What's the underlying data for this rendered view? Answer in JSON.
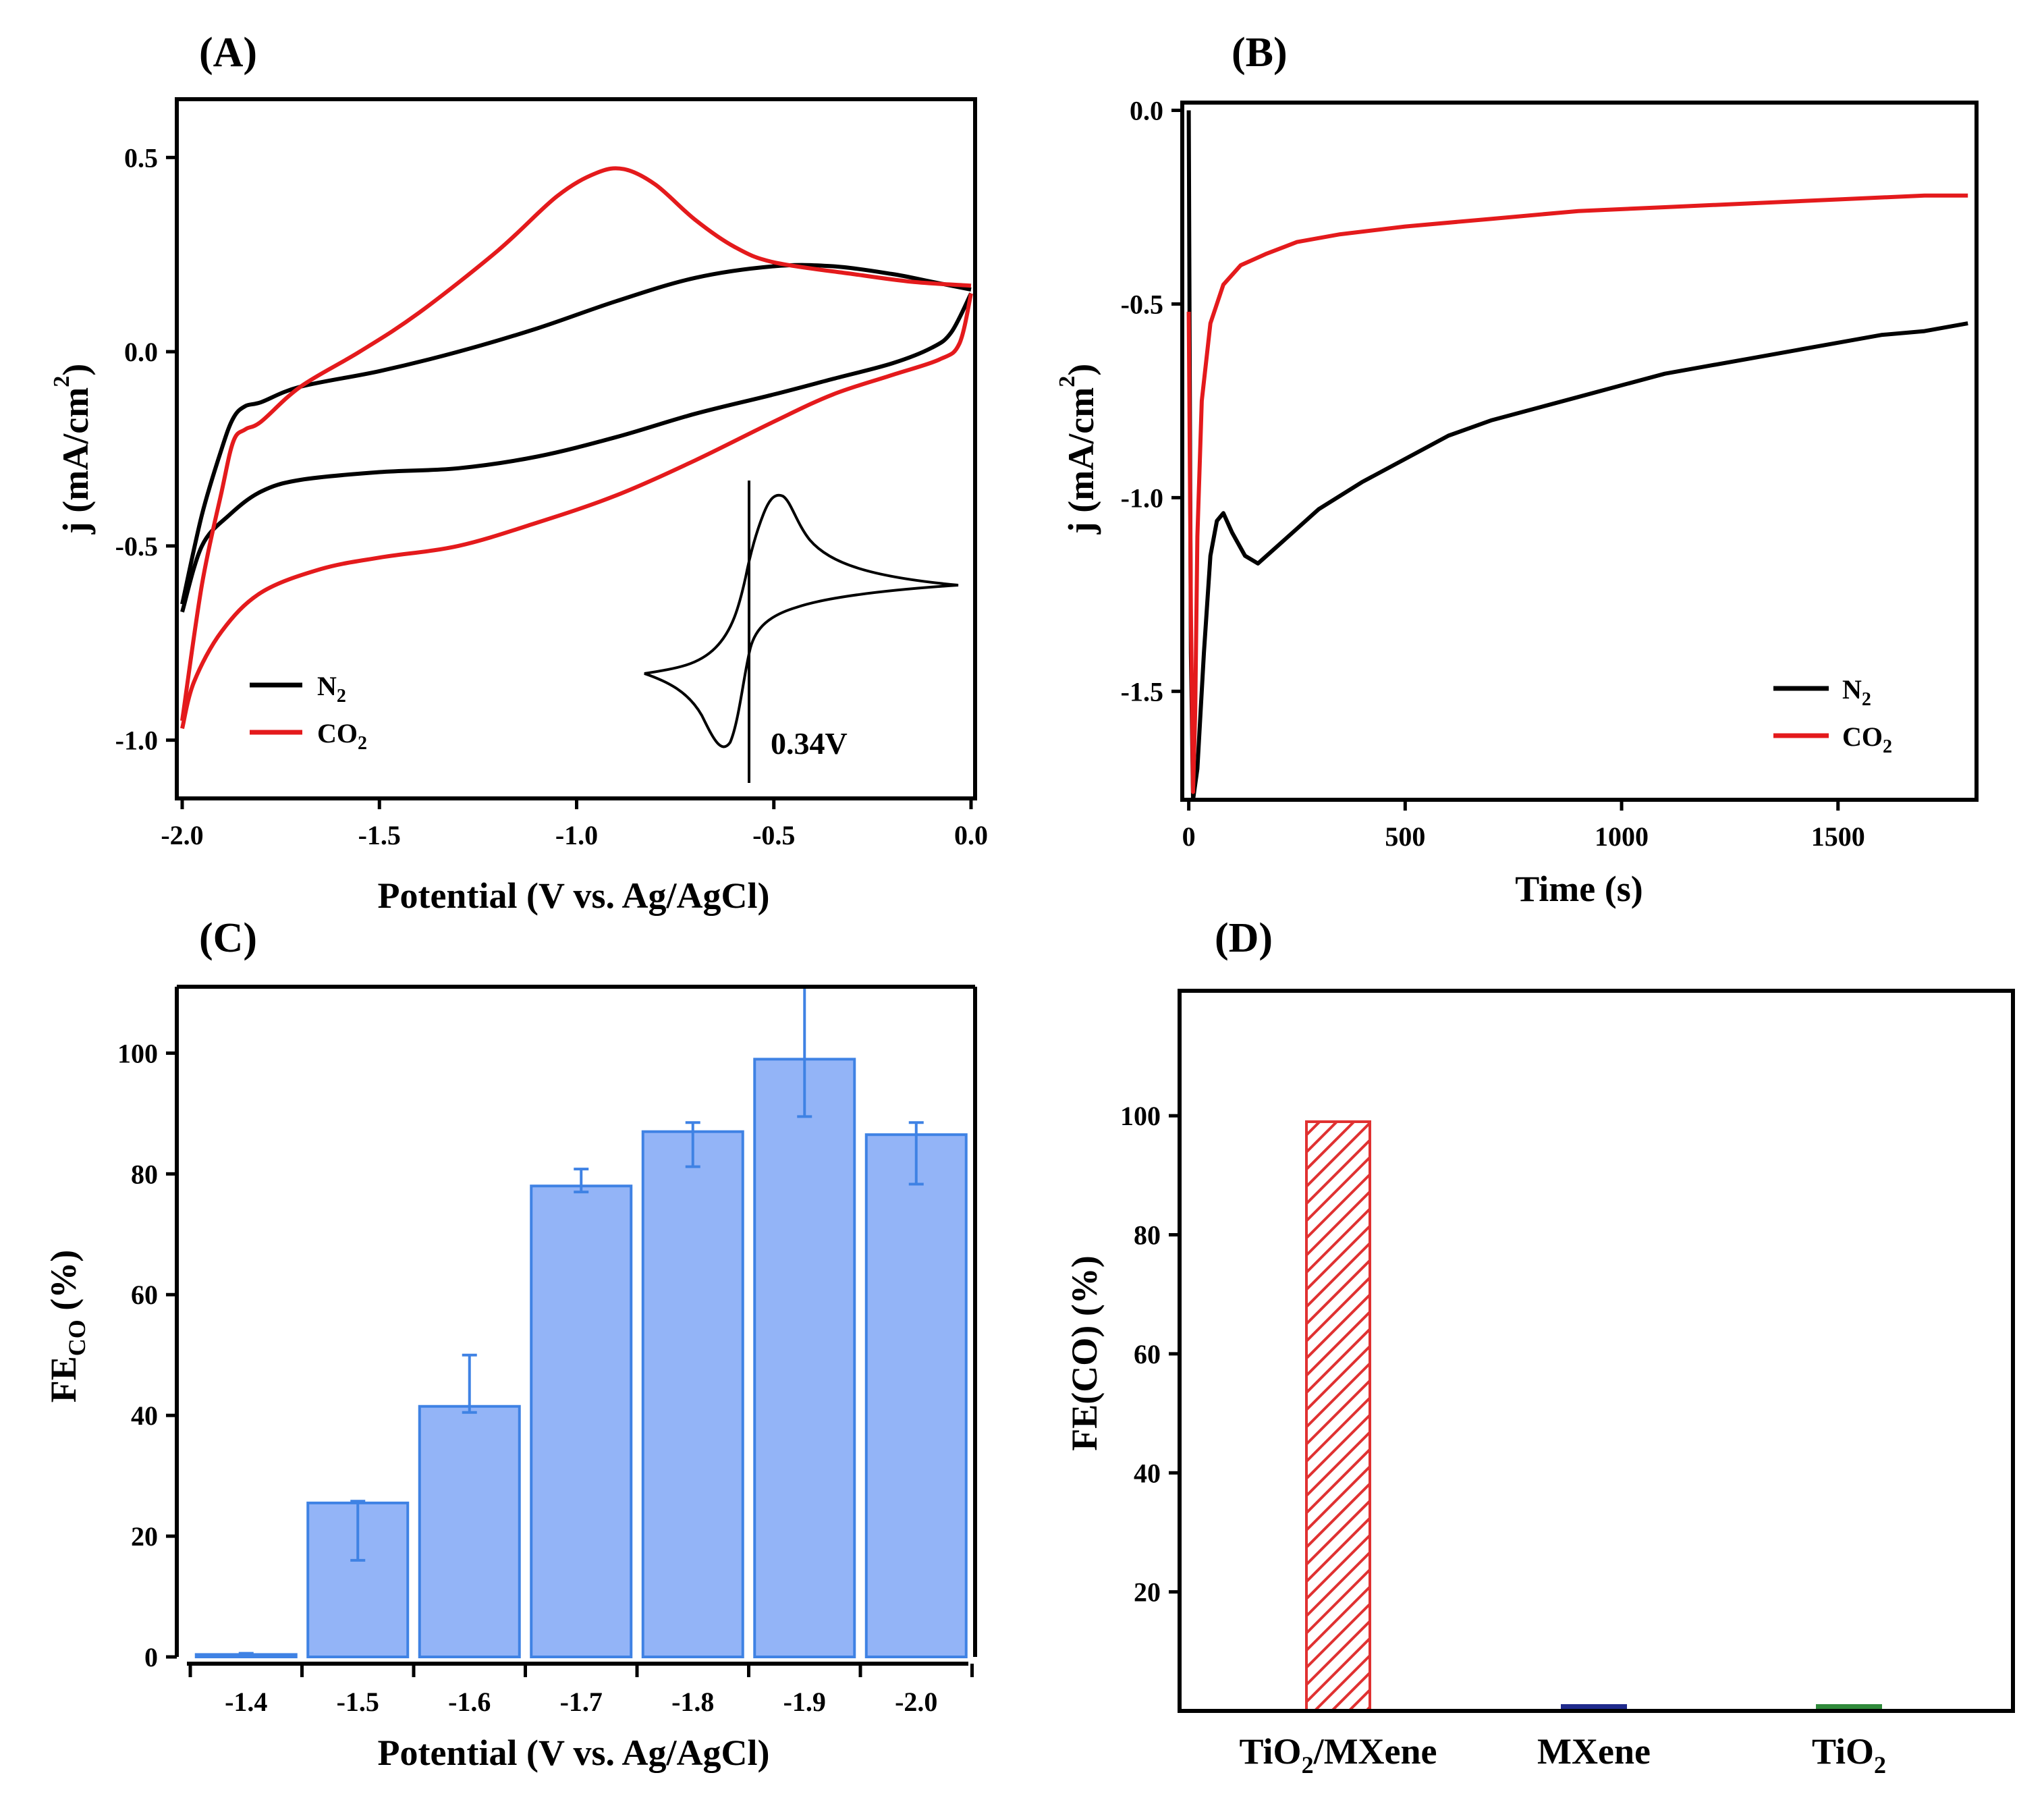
{
  "panels": {
    "A": {
      "letter": "(A)"
    },
    "B": {
      "letter": "(B)"
    },
    "C": {
      "letter": "(C)"
    },
    "D": {
      "letter": "(D)"
    }
  },
  "colors": {
    "n2": "#000000",
    "co2": "#e41a1c",
    "barC": "#93b4f7",
    "barC_edge": "#3f82e4",
    "barD": "#e03131",
    "mxene": "#1f2a8c",
    "tio2": "#2f8a3a"
  },
  "chart_data": [
    {
      "id": "A",
      "type": "line",
      "title": "",
      "xlabel": "Potential (V vs. Ag/AgCl)",
      "ylabel": "j (mA/cm",
      "ylabel_sup": "2",
      "ylabel_close": ")",
      "xlim": [
        -2.0,
        0.0
      ],
      "ylim": [
        -1.15,
        0.65
      ],
      "xticks": [
        "-2.0",
        "-1.5",
        "-1.0",
        "-0.5",
        "0.0"
      ],
      "yticks": [
        "-1.0",
        "-0.5",
        "0.0",
        "0.5"
      ],
      "legend": {
        "position": "bottom-left",
        "entries": [
          {
            "main": "N",
            "sub": "2"
          },
          {
            "main": "CO",
            "sub": "2"
          }
        ]
      },
      "inset_annotation": "0.34V",
      "series": [
        {
          "name": "N2",
          "forward": {
            "x": [
              -2.0,
              -1.95,
              -1.9,
              -1.87,
              -1.84,
              -1.8,
              -1.7,
              -1.5,
              -1.3,
              -1.1,
              -0.9,
              -0.7,
              -0.5,
              -0.35,
              -0.2,
              -0.1,
              0.0
            ],
            "y": [
              -0.65,
              -0.42,
              -0.25,
              -0.17,
              -0.14,
              -0.13,
              -0.09,
              -0.05,
              0.0,
              0.06,
              0.13,
              0.19,
              0.22,
              0.22,
              0.2,
              0.18,
              0.16
            ]
          },
          "backward": {
            "x": [
              0.0,
              -0.05,
              -0.1,
              -0.2,
              -0.35,
              -0.5,
              -0.7,
              -0.9,
              -1.1,
              -1.3,
              -1.5,
              -1.7,
              -1.8,
              -1.88,
              -1.95,
              -2.0
            ],
            "y": [
              0.15,
              0.05,
              0.01,
              -0.03,
              -0.07,
              -0.11,
              -0.16,
              -0.22,
              -0.27,
              -0.3,
              -0.31,
              -0.33,
              -0.36,
              -0.42,
              -0.5,
              -0.67
            ]
          }
        },
        {
          "name": "CO2",
          "forward": {
            "x": [
              -2.0,
              -1.95,
              -1.9,
              -1.87,
              -1.84,
              -1.8,
              -1.7,
              -1.55,
              -1.4,
              -1.2,
              -1.05,
              -0.95,
              -0.88,
              -0.8,
              -0.7,
              -0.6,
              -0.5,
              -0.3,
              -0.15,
              0.0
            ],
            "y": [
              -0.95,
              -0.6,
              -0.36,
              -0.23,
              -0.2,
              -0.18,
              -0.09,
              0.0,
              0.1,
              0.26,
              0.4,
              0.46,
              0.47,
              0.43,
              0.34,
              0.27,
              0.23,
              0.2,
              0.18,
              0.17
            ]
          },
          "backward": {
            "x": [
              0.0,
              -0.03,
              -0.08,
              -0.2,
              -0.35,
              -0.5,
              -0.7,
              -0.9,
              -1.1,
              -1.3,
              -1.5,
              -1.65,
              -1.8,
              -1.9,
              -1.97,
              -2.0
            ],
            "y": [
              0.15,
              0.02,
              -0.02,
              -0.06,
              -0.11,
              -0.18,
              -0.28,
              -0.37,
              -0.44,
              -0.5,
              -0.53,
              -0.56,
              -0.62,
              -0.72,
              -0.85,
              -0.97
            ]
          }
        }
      ]
    },
    {
      "id": "B",
      "type": "line",
      "title": "",
      "xlabel": "Time (s)",
      "ylabel": "j (mA/cm",
      "ylabel_sup": "2",
      "ylabel_close": ")",
      "xlim": [
        -15,
        1820
      ],
      "ylim": [
        -1.78,
        0.02
      ],
      "xticks": [
        "0",
        "500",
        "1000",
        "1500"
      ],
      "xtick_values": [
        0,
        500,
        1000,
        1500
      ],
      "yticks": [
        "0.0",
        "-0.5",
        "-1.0",
        "-1.5"
      ],
      "ytick_values": [
        0.0,
        -0.5,
        -1.0,
        -1.5
      ],
      "legend": {
        "position": "bottom-right",
        "entries": [
          {
            "main": "N",
            "sub": "2"
          },
          {
            "main": "CO",
            "sub": "2"
          }
        ]
      },
      "series": [
        {
          "name": "N2",
          "x": [
            0,
            2,
            5,
            10,
            20,
            35,
            50,
            65,
            80,
            100,
            130,
            160,
            200,
            250,
            300,
            400,
            500,
            600,
            700,
            800,
            900,
            1000,
            1100,
            1200,
            1300,
            1400,
            1500,
            1600,
            1700,
            1800
          ],
          "y": [
            0.0,
            -0.6,
            -1.4,
            -1.78,
            -1.7,
            -1.4,
            -1.15,
            -1.06,
            -1.04,
            -1.09,
            -1.15,
            -1.17,
            -1.13,
            -1.08,
            -1.03,
            -0.96,
            -0.9,
            -0.84,
            -0.8,
            -0.77,
            -0.74,
            -0.71,
            -0.68,
            -0.66,
            -0.64,
            -0.62,
            -0.6,
            -0.58,
            -0.57,
            -0.55
          ]
        },
        {
          "name": "CO2",
          "x": [
            0,
            5,
            10,
            15,
            20,
            30,
            50,
            80,
            120,
            180,
            250,
            350,
            500,
            700,
            900,
            1100,
            1300,
            1500,
            1700,
            1800
          ],
          "y": [
            -0.52,
            -1.3,
            -1.76,
            -1.55,
            -1.1,
            -0.75,
            -0.55,
            -0.45,
            -0.4,
            -0.37,
            -0.34,
            -0.32,
            -0.3,
            -0.28,
            -0.26,
            -0.25,
            -0.24,
            -0.23,
            -0.22,
            -0.22
          ]
        }
      ]
    },
    {
      "id": "C",
      "type": "bar",
      "title": "",
      "xlabel": "Potential (V vs. Ag/AgCl)",
      "ylabel": "FE",
      "ylabel_sub": "CO",
      "ylabel_unit": " (%)",
      "ylim": [
        0,
        111
      ],
      "yticks": [
        "0",
        "20",
        "40",
        "60",
        "80",
        "100"
      ],
      "ytick_values": [
        0,
        20,
        40,
        60,
        80,
        100
      ],
      "categories": [
        "-1.4",
        "-1.5",
        "-1.6",
        "-1.7",
        "-1.8",
        "-1.9",
        "-2.0"
      ],
      "values": [
        0.4,
        25.5,
        41.5,
        78,
        87,
        99,
        86.5
      ],
      "err_upper": [
        0.2,
        0.3,
        8.5,
        2.8,
        1.5,
        12,
        2
      ],
      "err_lower": [
        0.2,
        9.5,
        1,
        1,
        5.8,
        9.5,
        8.2
      ]
    },
    {
      "id": "D",
      "type": "bar",
      "title": "",
      "xlabel": "",
      "ylabel": "FE(CO) (%)",
      "ylim": [
        0,
        121
      ],
      "yticks": [
        "20",
        "40",
        "60",
        "80",
        "100"
      ],
      "ytick_values": [
        20,
        40,
        60,
        80,
        100
      ],
      "categories": [
        {
          "main": "TiO",
          "sub": "2",
          "rest": "/MXene"
        },
        {
          "main": "MXene",
          "sub": "",
          "rest": ""
        },
        {
          "main": "TiO",
          "sub": "2",
          "rest": ""
        }
      ],
      "values": [
        99,
        0.8,
        0.8
      ]
    }
  ]
}
